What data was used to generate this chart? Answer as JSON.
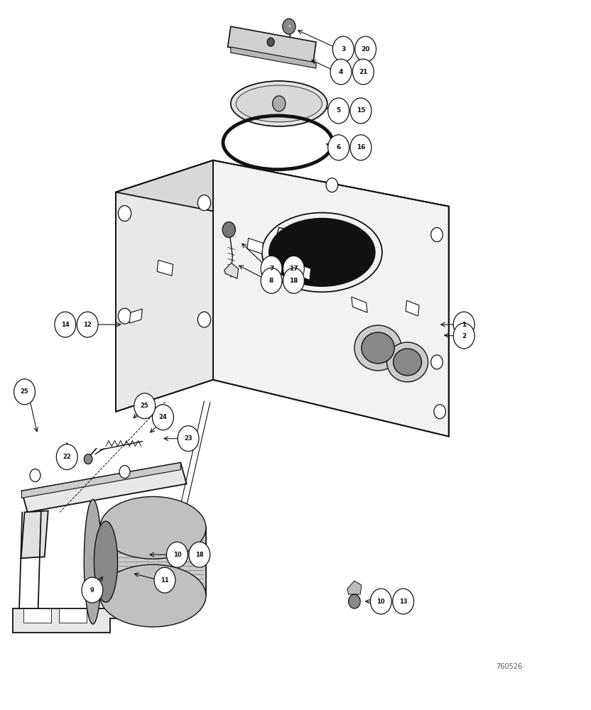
{
  "bg_color": "#ffffff",
  "line_color": "#111111",
  "dpi": 100,
  "figsize": [
    8.32,
    10.0
  ],
  "watermark": "760526"
}
